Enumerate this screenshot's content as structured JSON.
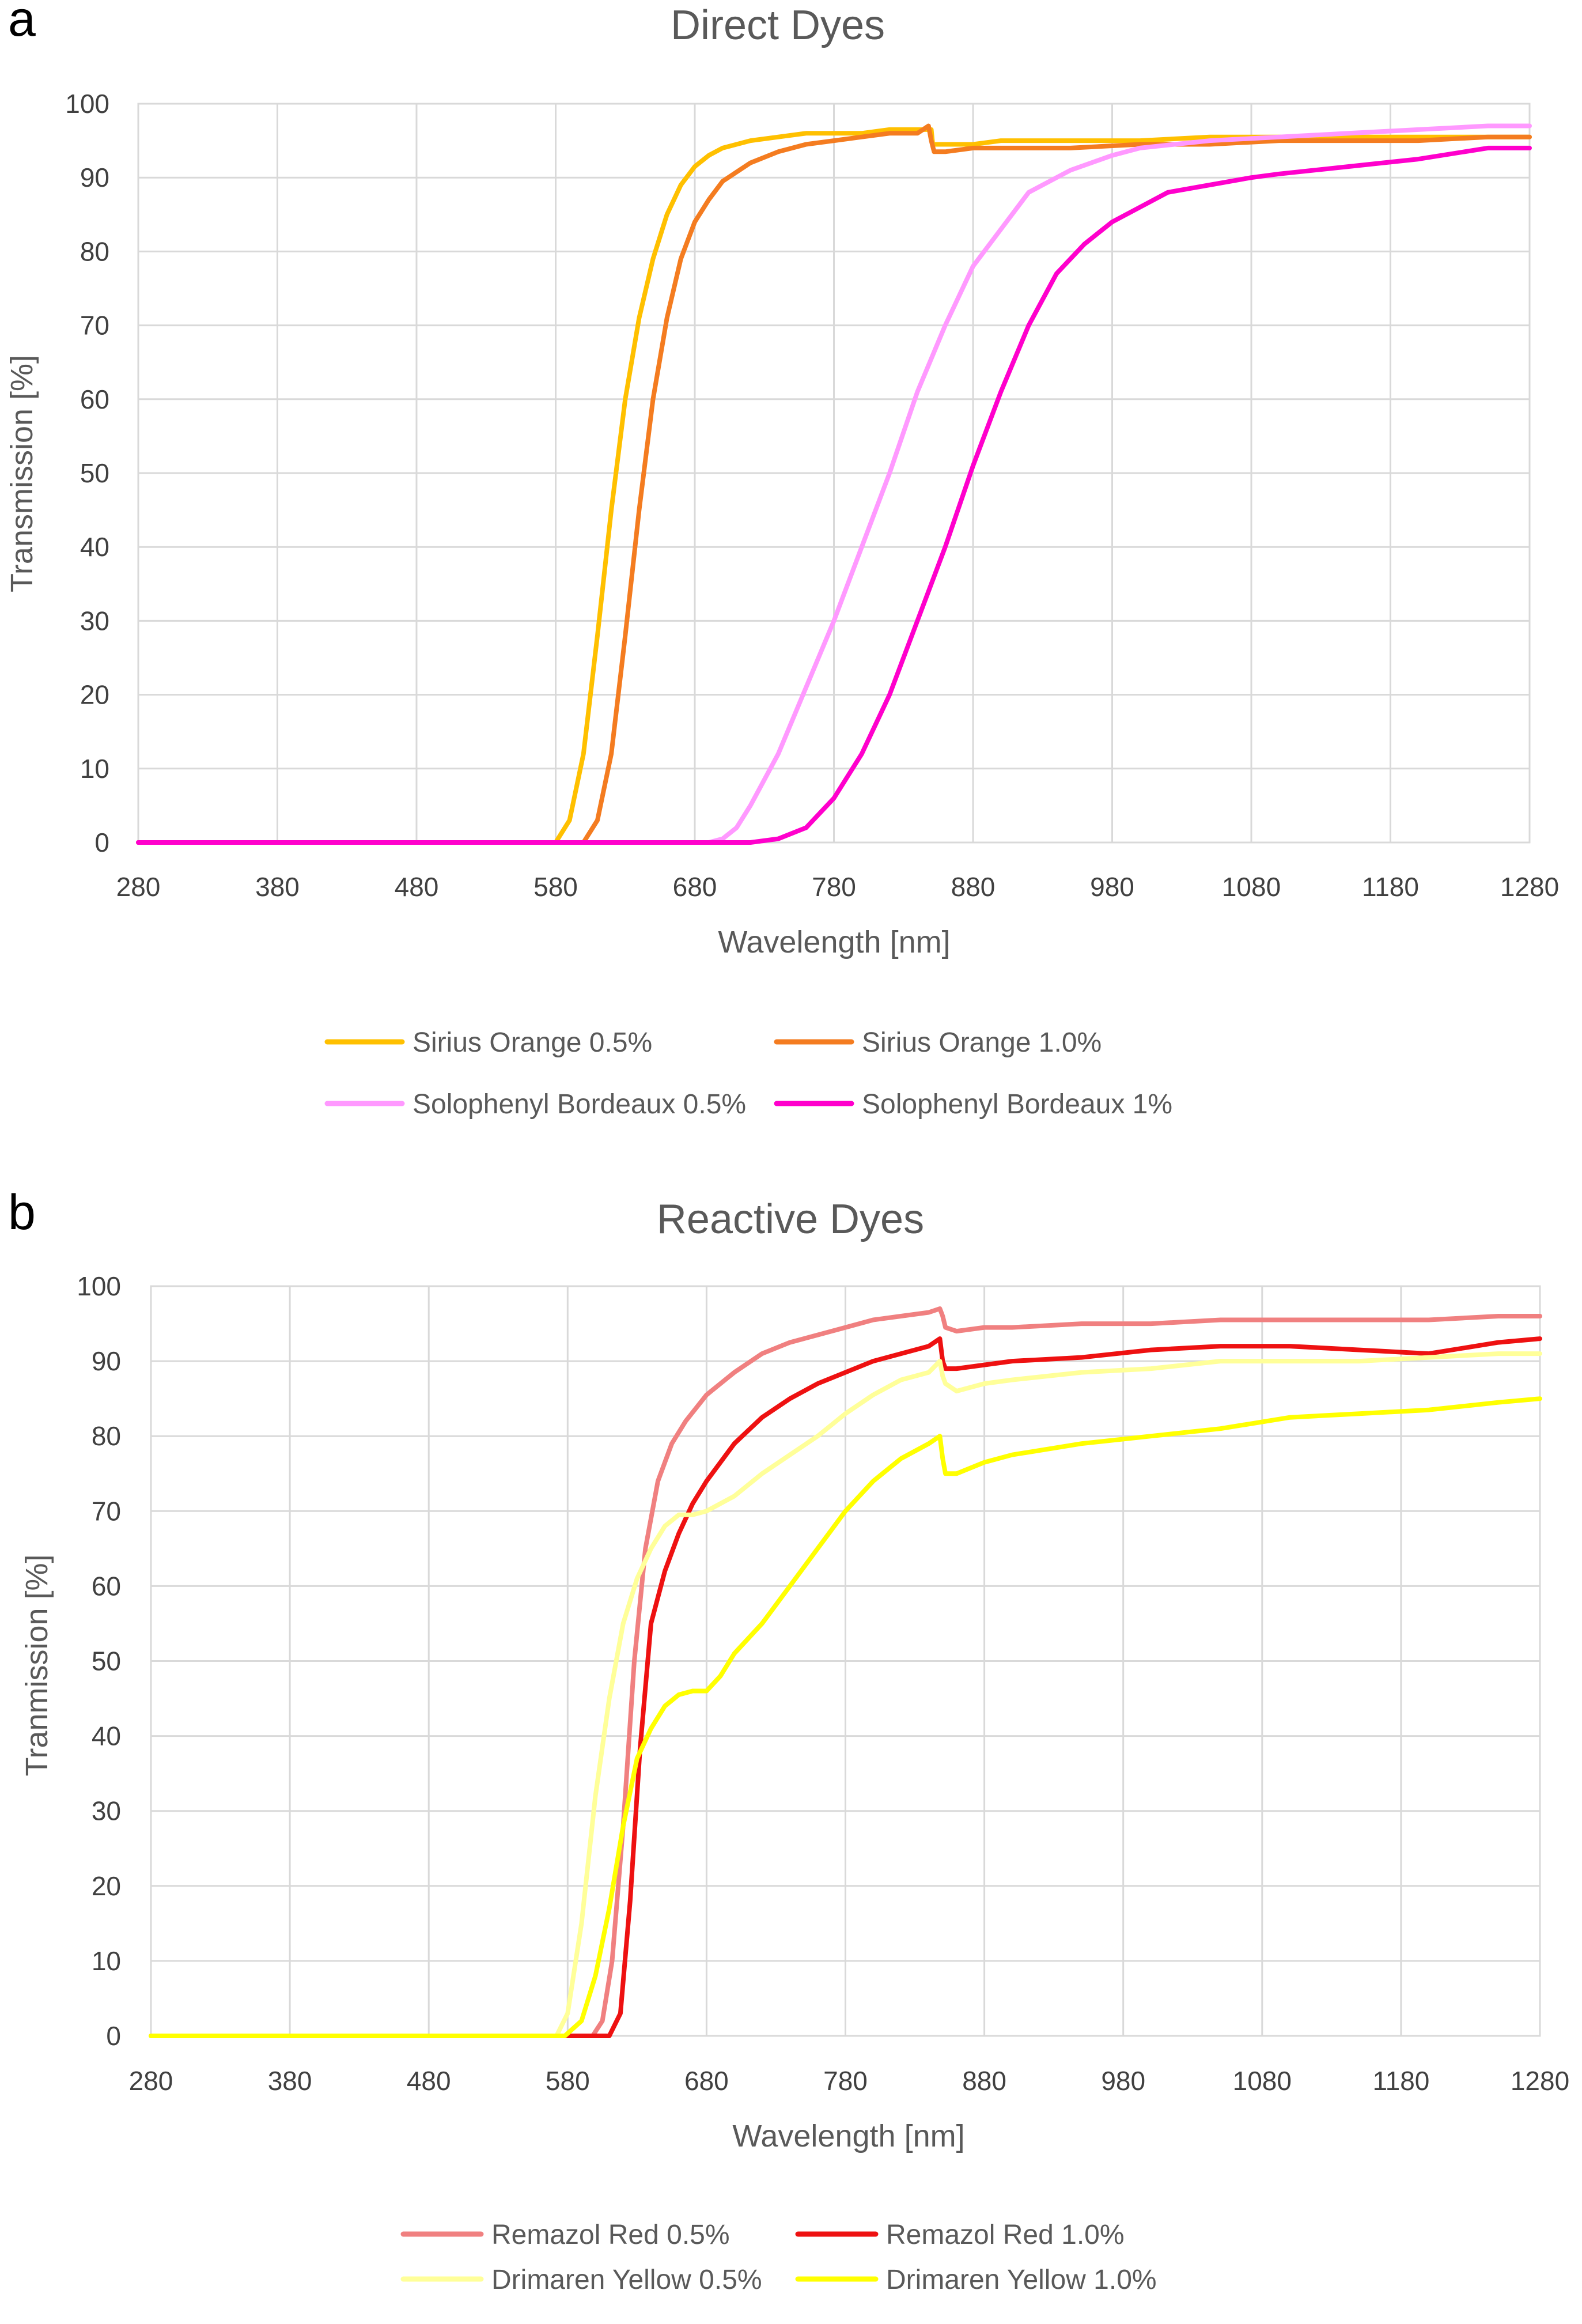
{
  "chart_data": [
    {
      "panel_label": "a",
      "type": "line",
      "title": "Direct Dyes",
      "xlabel": "Wavelength [nm]",
      "ylabel": "Transmission [%]",
      "xlim": [
        280,
        1280
      ],
      "ylim": [
        0,
        100
      ],
      "xticks": [
        280,
        380,
        480,
        580,
        680,
        780,
        880,
        980,
        1080,
        1180,
        1280
      ],
      "yticks": [
        0,
        10,
        20,
        30,
        40,
        50,
        60,
        70,
        80,
        90,
        100
      ],
      "grid": true,
      "legend": "bottom",
      "series": [
        {
          "name": "Sirius Orange 0.5%",
          "color": "#FFC000",
          "x": [
            280,
            580,
            590,
            600,
            610,
            620,
            630,
            640,
            650,
            660,
            670,
            680,
            690,
            700,
            720,
            740,
            760,
            780,
            800,
            820,
            840,
            850,
            851,
            860,
            880,
            900,
            950,
            1000,
            1050,
            1100,
            1150,
            1200,
            1250,
            1280
          ],
          "y": [
            0,
            0,
            3,
            12,
            28,
            45,
            60,
            71,
            79,
            85,
            89,
            91.5,
            93,
            94,
            95,
            95.5,
            96,
            96,
            96,
            96.5,
            96.5,
            96.5,
            94.5,
            94.5,
            94.5,
            95,
            95,
            95,
            95.5,
            95.5,
            95.5,
            95.5,
            95.5,
            95.5
          ]
        },
        {
          "name": "Sirius Orange 1.0%",
          "color": "#F47C20",
          "x": [
            280,
            600,
            610,
            620,
            630,
            640,
            650,
            660,
            670,
            680,
            690,
            700,
            720,
            740,
            760,
            780,
            800,
            820,
            840,
            848,
            850,
            852,
            860,
            880,
            900,
            950,
            1000,
            1050,
            1100,
            1150,
            1200,
            1250,
            1280
          ],
          "y": [
            0,
            0,
            3,
            12,
            28,
            45,
            60,
            71,
            79,
            84,
            87,
            89.5,
            92,
            93.5,
            94.5,
            95,
            95.5,
            96,
            96,
            97,
            95,
            93.5,
            93.5,
            94,
            94,
            94,
            94.5,
            94.5,
            95,
            95,
            95,
            95.5,
            95.5
          ]
        },
        {
          "name": "Solophenyl Bordeaux 0.5%",
          "color": "#FF99FF",
          "x": [
            280,
            690,
            700,
            710,
            720,
            740,
            760,
            780,
            800,
            820,
            840,
            860,
            880,
            900,
            920,
            950,
            980,
            1000,
            1050,
            1100,
            1150,
            1200,
            1250,
            1280
          ],
          "y": [
            0,
            0,
            0.5,
            2,
            5,
            12,
            21,
            30,
            40,
            50,
            61,
            70,
            78,
            83,
            88,
            91,
            93,
            94,
            95,
            95.5,
            96,
            96.5,
            97,
            97
          ]
        },
        {
          "name": "Solophenyl Bordeaux 1%",
          "color": "#FF00CC",
          "x": [
            280,
            720,
            740,
            760,
            780,
            800,
            820,
            840,
            860,
            880,
            900,
            920,
            940,
            960,
            980,
            1000,
            1020,
            1050,
            1080,
            1100,
            1150,
            1200,
            1250,
            1280
          ],
          "y": [
            0,
            0,
            0.5,
            2,
            6,
            12,
            20,
            30,
            40,
            51,
            61,
            70,
            77,
            81,
            84,
            86,
            88,
            89,
            90,
            90.5,
            91.5,
            92.5,
            94,
            94
          ]
        }
      ]
    },
    {
      "panel_label": "b",
      "type": "line",
      "title": "Reactive Dyes",
      "xlabel": "Wavelength [nm]",
      "ylabel": "Tranmission [%]",
      "xlim": [
        280,
        1280
      ],
      "ylim": [
        0,
        100
      ],
      "xticks": [
        280,
        380,
        480,
        580,
        680,
        780,
        880,
        980,
        1080,
        1180,
        1280
      ],
      "yticks": [
        0,
        10,
        20,
        30,
        40,
        50,
        60,
        70,
        80,
        90,
        100
      ],
      "grid": true,
      "legend": "bottom",
      "series": [
        {
          "name": "Remazol Red  0.5%",
          "color": "#F08080",
          "x": [
            280,
            598,
            605,
            612,
            620,
            628,
            636,
            645,
            655,
            665,
            680,
            700,
            720,
            740,
            760,
            780,
            800,
            820,
            840,
            848,
            850,
            852,
            860,
            880,
            900,
            950,
            1000,
            1050,
            1100,
            1150,
            1200,
            1250,
            1280
          ],
          "y": [
            0,
            0,
            2,
            10,
            28,
            50,
            65,
            74,
            79,
            82,
            85.5,
            88.5,
            91,
            92.5,
            93.5,
            94.5,
            95.5,
            96,
            96.5,
            97,
            96,
            94.5,
            94,
            94.5,
            94.5,
            95,
            95,
            95.5,
            95.5,
            95.5,
            95.5,
            96,
            96
          ]
        },
        {
          "name": "Remazol Red  1.0%",
          "color": "#EE1111",
          "x": [
            280,
            610,
            618,
            625,
            632,
            640,
            650,
            660,
            670,
            680,
            700,
            720,
            740,
            760,
            780,
            800,
            820,
            840,
            848,
            850,
            852,
            860,
            880,
            900,
            950,
            1000,
            1050,
            1100,
            1150,
            1200,
            1250,
            1280
          ],
          "y": [
            0,
            0,
            3,
            18,
            38,
            55,
            62,
            67,
            71,
            74,
            79,
            82.5,
            85,
            87,
            88.5,
            90,
            91,
            92,
            93,
            90,
            89,
            89,
            89.5,
            90,
            90.5,
            91.5,
            92,
            92,
            91.5,
            91,
            92.5,
            93
          ]
        },
        {
          "name": "Drimaren Yellow 0.5%",
          "color": "#FFFF99",
          "x": [
            280,
            572,
            580,
            590,
            600,
            610,
            620,
            630,
            640,
            650,
            660,
            670,
            680,
            700,
            720,
            740,
            760,
            780,
            800,
            820,
            840,
            848,
            850,
            852,
            860,
            880,
            900,
            950,
            1000,
            1050,
            1100,
            1150,
            1200,
            1250,
            1280
          ],
          "y": [
            0,
            0,
            3,
            15,
            32,
            45,
            55,
            61,
            65,
            68,
            69.5,
            69.5,
            70,
            72,
            75,
            77.5,
            80,
            83,
            85.5,
            87.5,
            88.5,
            90,
            88,
            87,
            86,
            87,
            87.5,
            88.5,
            89,
            90,
            90,
            90,
            90.5,
            91,
            91
          ]
        },
        {
          "name": "Drimaren Yellow 1.0%",
          "color": "#FFFF00",
          "x": [
            280,
            578,
            590,
            600,
            610,
            620,
            630,
            640,
            650,
            660,
            670,
            680,
            690,
            700,
            720,
            740,
            760,
            780,
            800,
            820,
            840,
            848,
            850,
            852,
            860,
            880,
            900,
            950,
            1000,
            1050,
            1100,
            1150,
            1200,
            1250,
            1280
          ],
          "y": [
            0,
            0,
            2,
            8,
            17,
            28,
            37,
            41,
            44,
            45.5,
            46,
            46,
            48,
            51,
            55,
            60,
            65,
            70,
            74,
            77,
            79,
            80,
            77,
            75,
            75,
            76.5,
            77.5,
            79,
            80,
            81,
            82.5,
            83,
            83.5,
            84.5,
            85
          ]
        }
      ]
    }
  ]
}
